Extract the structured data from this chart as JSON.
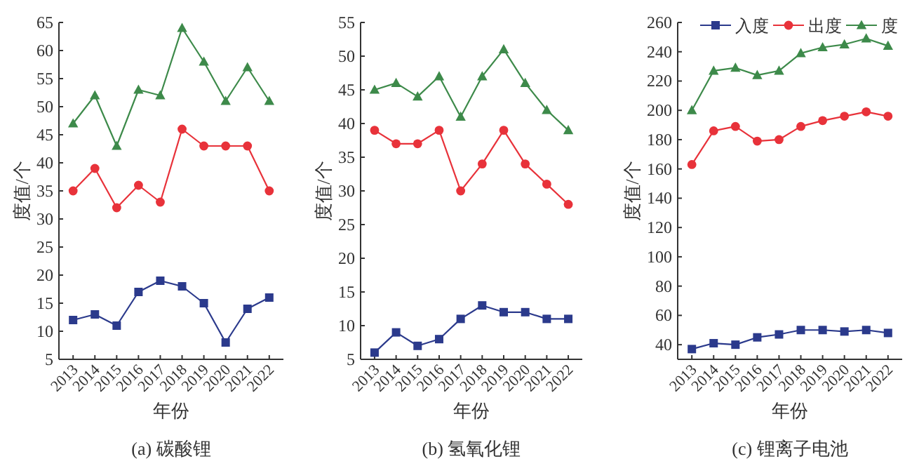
{
  "chart_data": [
    {
      "type": "line",
      "title": "(a) 碳酸锂",
      "xlabel": "年份",
      "ylabel": "度值/个",
      "categories": [
        "2013",
        "2014",
        "2015",
        "2016",
        "2017",
        "2018",
        "2019",
        "2020",
        "2021",
        "2022"
      ],
      "ylim": [
        5,
        65
      ],
      "yticks": [
        5,
        10,
        15,
        20,
        25,
        30,
        35,
        40,
        45,
        50,
        55,
        60,
        65
      ],
      "grid": false,
      "legend": false,
      "series": [
        {
          "color": "#2b3a8c",
          "marker": "square",
          "values": [
            12,
            13,
            11,
            17,
            19,
            18,
            15,
            8,
            14,
            16
          ]
        },
        {
          "color": "#e8323a",
          "marker": "circle",
          "values": [
            35,
            39,
            32,
            36,
            33,
            46,
            43,
            43,
            43,
            35
          ]
        },
        {
          "color": "#3d8a4a",
          "marker": "triangle",
          "values": [
            47,
            52,
            43,
            53,
            52,
            64,
            58,
            51,
            57,
            51
          ]
        }
      ]
    },
    {
      "type": "line",
      "title": "(b) 氢氧化锂",
      "xlabel": "年份",
      "ylabel": "度值/个",
      "categories": [
        "2013",
        "2014",
        "2015",
        "2016",
        "2017",
        "2018",
        "2019",
        "2020",
        "2021",
        "2022"
      ],
      "ylim": [
        5,
        55
      ],
      "yticks": [
        5,
        10,
        15,
        20,
        25,
        30,
        35,
        40,
        45,
        50,
        55
      ],
      "grid": false,
      "legend": false,
      "series": [
        {
          "color": "#2b3a8c",
          "marker": "square",
          "values": [
            6,
            9,
            7,
            8,
            11,
            13,
            12,
            12,
            11,
            11
          ]
        },
        {
          "color": "#e8323a",
          "marker": "circle",
          "values": [
            39,
            37,
            37,
            39,
            30,
            34,
            39,
            34,
            31,
            28
          ]
        },
        {
          "color": "#3d8a4a",
          "marker": "triangle",
          "values": [
            45,
            46,
            44,
            47,
            41,
            47,
            51,
            46,
            42,
            39
          ]
        }
      ]
    },
    {
      "type": "line",
      "title": "(c) 锂离子电池",
      "xlabel": "年份",
      "ylabel": "度值/个",
      "categories": [
        "2013",
        "2014",
        "2015",
        "2016",
        "2017",
        "2018",
        "2019",
        "2020",
        "2021",
        "2022"
      ],
      "ylim": [
        30,
        260
      ],
      "yticks": [
        40,
        60,
        80,
        100,
        120,
        140,
        160,
        180,
        200,
        220,
        240,
        260
      ],
      "grid": false,
      "legend": "top right",
      "series": [
        {
          "name": "入度",
          "color": "#2b3a8c",
          "marker": "square",
          "values": [
            37,
            41,
            40,
            45,
            47,
            50,
            50,
            49,
            50,
            48
          ]
        },
        {
          "name": "出度",
          "color": "#e8323a",
          "marker": "circle",
          "values": [
            163,
            186,
            189,
            179,
            180,
            189,
            193,
            196,
            199,
            196
          ]
        },
        {
          "name": "度",
          "color": "#3d8a4a",
          "marker": "triangle",
          "values": [
            200,
            227,
            229,
            224,
            227,
            239,
            243,
            245,
            249,
            244
          ]
        }
      ]
    }
  ]
}
